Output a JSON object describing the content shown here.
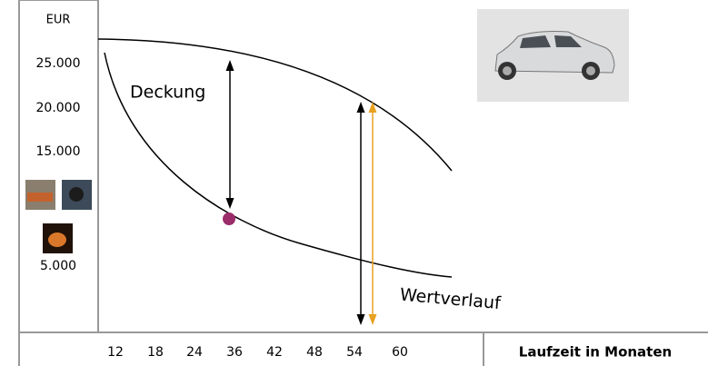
{
  "axis": {
    "unit": "EUR",
    "y_labels": [
      "25.000",
      "20.000",
      "15.000",
      "5.000"
    ],
    "x_labels": [
      "12",
      "18",
      "24",
      "36",
      "42",
      "48",
      "54",
      "60"
    ],
    "x_title": "Laufzeit in Monaten"
  },
  "annotations": {
    "coverage": "Deckung",
    "value_curve": "Wertverlauf"
  }
}
